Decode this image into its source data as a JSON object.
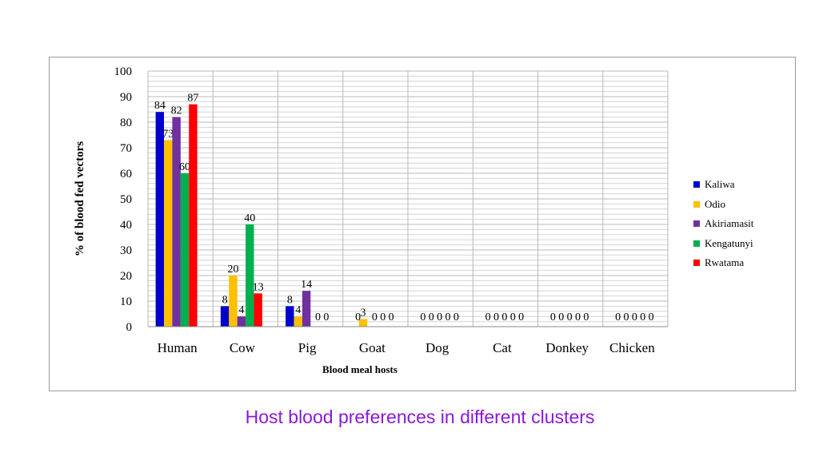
{
  "caption": "Host blood preferences in different clusters",
  "chart_data": {
    "type": "bar",
    "title": "",
    "xlabel": "Blood meal hosts",
    "ylabel": "% of blood fed vectors",
    "ylim": [
      0,
      100
    ],
    "yticks": [
      0,
      10,
      20,
      30,
      40,
      50,
      60,
      70,
      80,
      90,
      100
    ],
    "grid": true,
    "legend_position": "right",
    "categories": [
      "Human",
      "Cow",
      "Pig",
      "Goat",
      "Dog",
      "Cat",
      "Donkey",
      "Chicken"
    ],
    "series": [
      {
        "name": "Kaliwa",
        "color": "#0000cc",
        "values": [
          84,
          8,
          8,
          0,
          0,
          0,
          0,
          0
        ]
      },
      {
        "name": "Odio",
        "color": "#ffc000",
        "values": [
          73,
          20,
          4,
          3,
          0,
          0,
          0,
          0
        ]
      },
      {
        "name": "Akiriamasit",
        "color": "#7030a0",
        "values": [
          82,
          4,
          14,
          0,
          0,
          0,
          0,
          0
        ]
      },
      {
        "name": "Kengatunyi",
        "color": "#00b050",
        "values": [
          60,
          40,
          0,
          0,
          0,
          0,
          0,
          0
        ]
      },
      {
        "name": "Rwatama",
        "color": "#ff0000",
        "values": [
          87,
          13,
          0,
          0,
          0,
          0,
          0,
          0
        ]
      }
    ]
  }
}
